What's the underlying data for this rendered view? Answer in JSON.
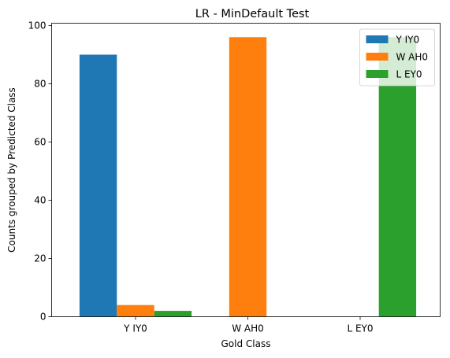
{
  "chart_data": {
    "type": "bar",
    "title": "LR - MinDefault Test",
    "xlabel": "Gold Class",
    "ylabel": "Counts grouped by Predicted Class",
    "categories": [
      "Y IY0",
      "W AH0",
      "L EY0"
    ],
    "series": [
      {
        "name": "Y IY0",
        "color": "#1f77b4",
        "values": [
          90,
          0,
          0
        ]
      },
      {
        "name": "W AH0",
        "color": "#ff7f0e",
        "values": [
          4,
          96,
          0
        ]
      },
      {
        "name": "L EY0",
        "color": "#2ca02c",
        "values": [
          2,
          0,
          96
        ]
      }
    ],
    "ylim": [
      0,
      100.8
    ],
    "yticks": [
      0,
      20,
      40,
      60,
      80,
      100
    ],
    "legend_position": "top-right",
    "grid": false
  }
}
